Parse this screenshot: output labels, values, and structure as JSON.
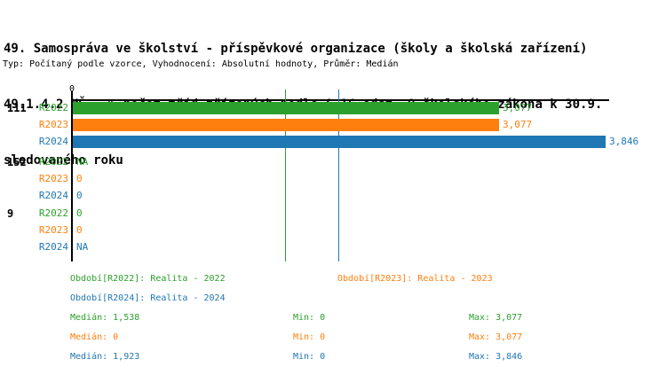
{
  "title": {
    "line1": "49. Samospráva ve školství - příspěvkové organizace (školy a školská zařízení)",
    "line2": "49.1.4.2 MŠ - % počet tříd zřízených podle § 16 odst. 9 školského zákona k 30.9.",
    "line3": "sledovaného roku",
    "meta": "Typ: Počítaný podle vzorce, Vyhodnocení: Absolutní hodnoty, Průměr: Medián"
  },
  "colors": {
    "R2022": "#2ca02c",
    "R2023": "#ff7f0e",
    "R2024": "#1f77b4",
    "axis": "#000000",
    "background": "#ffffff"
  },
  "chart_data": {
    "type": "bar",
    "orientation": "horizontal",
    "title_lines": [
      "49. Samospráva ve školství - příspěvkové organizace (školy a školská zařízení)",
      "49.1.4.2 MŠ - % počet tříd zřízených podle § 16 odst. 9 školského zákona k 30.9.",
      "sledovaného roku"
    ],
    "subtitle": "Typ: Počítaný podle vzorce, Vyhodnocení: Absolutní hodnoty, Průměr: Medián",
    "x_axis": {
      "tick_labels": [
        "0"
      ],
      "min": 0,
      "max_visible": 3.88,
      "grid": false
    },
    "series_names": [
      "R2022",
      "R2023",
      "R2024"
    ],
    "groups": [
      {
        "label": "111",
        "rows": [
          {
            "series": "R2022",
            "value": 3.077,
            "value_label": "3,077"
          },
          {
            "series": "R2023",
            "value": 3.077,
            "value_label": "3,077"
          },
          {
            "series": "R2024",
            "value": 3.846,
            "value_label": "3,846"
          }
        ]
      },
      {
        "label": "152",
        "rows": [
          {
            "series": "R2022",
            "value": null,
            "value_label": "NA"
          },
          {
            "series": "R2023",
            "value": 0,
            "value_label": "0"
          },
          {
            "series": "R2024",
            "value": 0,
            "value_label": "0"
          }
        ]
      },
      {
        "label": "9",
        "rows": [
          {
            "series": "R2022",
            "value": 0,
            "value_label": "0"
          },
          {
            "series": "R2023",
            "value": 0,
            "value_label": "0"
          },
          {
            "series": "R2024",
            "value": null,
            "value_label": "NA"
          }
        ]
      }
    ],
    "median_lines": [
      {
        "series": "R2022",
        "value": 1.538
      },
      {
        "series": "R2024",
        "value": 1.923
      }
    ],
    "legend": [
      {
        "series": "R2022",
        "label": "Období[R2022]: Realita - 2022"
      },
      {
        "series": "R2023",
        "label": "Období[R2023]: Realita - 2023"
      },
      {
        "series": "R2024",
        "label": "Období[R2024]: Realita - 2024"
      }
    ],
    "stats": [
      {
        "series": "R2022",
        "median": 1.538,
        "min": 0,
        "max": 3.077,
        "median_label": "Medián: 1,538",
        "min_label": "Min: 0",
        "max_label": "Max: 3,077"
      },
      {
        "series": "R2023",
        "median": 0,
        "min": 0,
        "max": 3.077,
        "median_label": "Medián: 0",
        "min_label": "Min: 0",
        "max_label": "Max: 3,077"
      },
      {
        "series": "R2024",
        "median": 1.923,
        "min": 0,
        "max": 3.846,
        "median_label": "Medián: 1,923",
        "min_label": "Min: 0",
        "max_label": "Max: 3,846"
      }
    ]
  }
}
